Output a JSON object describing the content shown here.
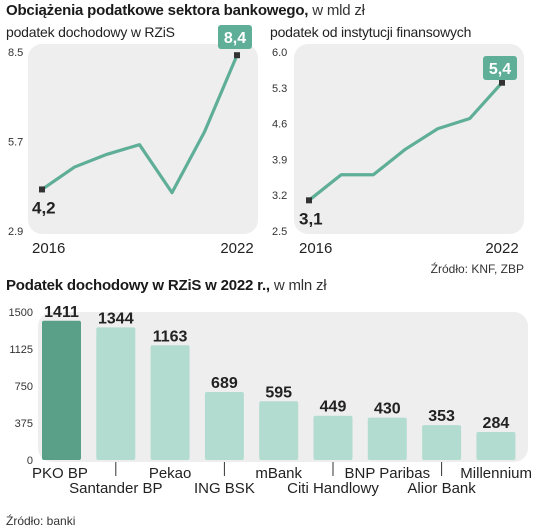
{
  "header": {
    "title_bold": "Obciążenia podatkowe sektora bankowego,",
    "title_unit": "w mld zł"
  },
  "top_source": "Źródło: KNF, ZBP",
  "bottom_header": {
    "title_bold": "Podatek dochodowy w RZiS w 2022 r.,",
    "title_unit": "w mln zł"
  },
  "bottom_source": "Źródło: banki",
  "colors": {
    "panel_bg": "#eeeeee",
    "line": "#5fae97",
    "bar_highlight": "#5aa089",
    "bar": "#b3dcd0",
    "badge": "#5fae97"
  },
  "chart_data": [
    {
      "type": "line",
      "label": "podatek dochodowy w RZiS",
      "x": [
        2016,
        2017,
        2018,
        2019,
        2020,
        2021,
        2022
      ],
      "values": [
        4.2,
        4.9,
        5.3,
        5.6,
        4.1,
        6.0,
        8.4
      ],
      "y_ticks": [
        "8.5",
        "5.7",
        "2.9"
      ],
      "ylim": [
        2.9,
        8.5
      ],
      "x_tick_labels": [
        "2016",
        "2022"
      ],
      "start_label": "4,2",
      "end_label": "8,4"
    },
    {
      "type": "line",
      "label": "podatek od instytucji finansowych",
      "x": [
        2016,
        2017,
        2018,
        2019,
        2020,
        2021,
        2022
      ],
      "values": [
        3.1,
        3.6,
        3.6,
        4.1,
        4.5,
        4.7,
        5.4
      ],
      "y_ticks": [
        "6.0",
        "5.3",
        "4.6",
        "3.9",
        "3.2",
        "2.5"
      ],
      "ylim": [
        2.5,
        6.0
      ],
      "x_tick_labels": [
        "2016",
        "2022"
      ],
      "start_label": "3,1",
      "end_label": "5,4"
    },
    {
      "type": "bar",
      "categories": [
        "PKO BP",
        "Santander BP",
        "Pekao",
        "ING BSK",
        "mBank",
        "Citi Handlowy",
        "BNP Paribas",
        "Alior Bank",
        "Millennium"
      ],
      "values": [
        1411,
        1344,
        1163,
        689,
        595,
        449,
        430,
        353,
        284
      ],
      "y_ticks": [
        "1500",
        "1125",
        "750",
        "375",
        "0"
      ],
      "ylim": [
        0,
        1500
      ]
    }
  ]
}
